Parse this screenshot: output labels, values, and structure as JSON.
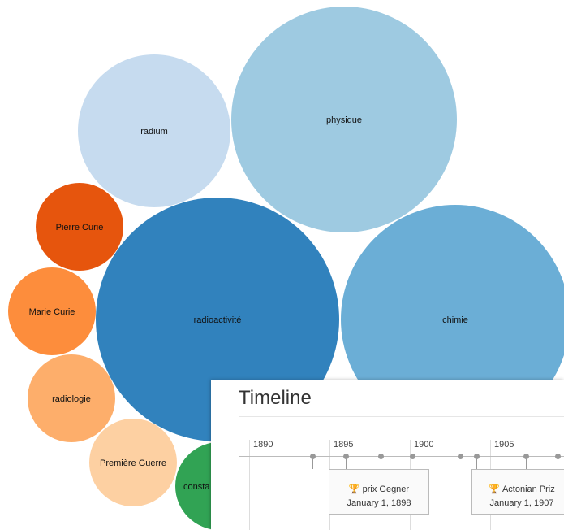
{
  "bubbles": [
    {
      "label": "radium",
      "color": "#c6dbef"
    },
    {
      "label": "physique",
      "color": "#9ecae1"
    },
    {
      "label": "Pierre Curie",
      "color": "#e6550d"
    },
    {
      "label": "Marie Curie",
      "color": "#fd8d3c"
    },
    {
      "label": "radioactivité",
      "color": "#3182bd"
    },
    {
      "label": "chimie",
      "color": "#6baed6"
    },
    {
      "label": "radiologie",
      "color": "#fdae6b"
    },
    {
      "label": "Première Guerre",
      "color": "#fdd0a2"
    },
    {
      "label": "consta",
      "color": "#31a354"
    }
  ],
  "timeline": {
    "title": "Timeline",
    "ticks": [
      "1890",
      "1895",
      "1900",
      "1905"
    ],
    "events": [
      {
        "icon": "trophy-icon",
        "label": "prix Gegner",
        "date": "January 1, 1898"
      },
      {
        "icon": "trophy-icon",
        "label": "Actonian Priz",
        "date": "January 1, 1907"
      }
    ]
  }
}
